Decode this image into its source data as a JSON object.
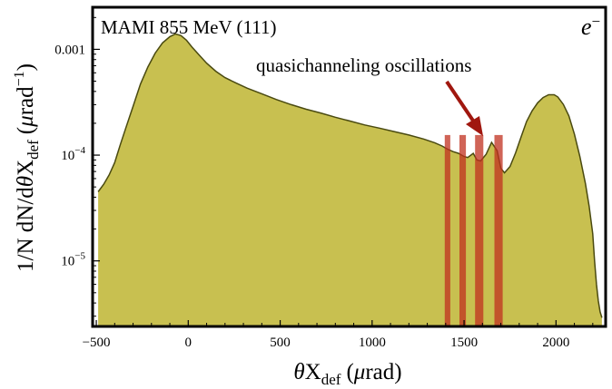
{
  "chart_data": {
    "type": "area",
    "title": "MAMI 855 MeV (111)",
    "corner_label": "e−",
    "xlabel": "θX",
    "xlabel_sub": "def",
    "xlabel_unit": "(μrad)",
    "ylabel": "1/N dN/dθX",
    "ylabel_sub": "def",
    "ylabel_unit": "(μrad⁻¹)",
    "y_scale": "log",
    "xlim": [
      -520,
      2270
    ],
    "ylim": [
      2.4e-06,
      0.0025
    ],
    "x_ticks": [
      -500,
      0,
      500,
      1000,
      1500,
      2000
    ],
    "x_tick_labels": [
      "−500",
      "0",
      "500",
      "1000",
      "1500",
      "2000"
    ],
    "y_ticks": [
      1e-05,
      0.0001,
      0.001
    ],
    "y_tick_labels": [
      {
        "base": "10",
        "exp": "−5"
      },
      {
        "base": "10",
        "exp": "−4"
      },
      {
        "base": "0.001",
        "exp": ""
      }
    ],
    "fill_color": "#c8c050",
    "line_color": "#4a4a10",
    "highlight_color": "#c0301f",
    "annotation": "quasichanneling oscillations",
    "x": [
      -490,
      -460,
      -430,
      -400,
      -370,
      -340,
      -300,
      -260,
      -220,
      -180,
      -140,
      -100,
      -70,
      -40,
      -10,
      20,
      60,
      100,
      150,
      200,
      260,
      320,
      400,
      480,
      560,
      640,
      720,
      800,
      880,
      960,
      1040,
      1120,
      1200,
      1280,
      1340,
      1380,
      1410,
      1440,
      1470,
      1500,
      1520,
      1550,
      1570,
      1590,
      1620,
      1650,
      1680,
      1700,
      1720,
      1750,
      1780,
      1810,
      1840,
      1870,
      1900,
      1930,
      1960,
      1990,
      2010,
      2040,
      2070,
      2100,
      2130,
      2160,
      2180,
      2200,
      2210,
      2220,
      2230,
      2240,
      2250
    ],
    "y": [
      4.5e-05,
      5.3e-05,
      6.5e-05,
      8.5e-05,
      0.000125,
      0.00018,
      0.00029,
      0.00047,
      0.00068,
      0.00092,
      0.00115,
      0.00132,
      0.0014,
      0.00135,
      0.00122,
      0.00105,
      0.00088,
      0.00074,
      0.00062,
      0.00054,
      0.00048,
      0.00043,
      0.00038,
      0.000335,
      0.0003,
      0.000272,
      0.00025,
      0.000228,
      0.00021,
      0.000193,
      0.00018,
      0.000167,
      0.000155,
      0.000142,
      0.000131,
      0.000122,
      0.000114,
      0.000108,
      0.000104,
      9.7e-05,
      9.5e-05,
      0.000104,
      9e-05,
      8.8e-05,
      0.000102,
      0.000132,
      0.00011,
      7.5e-05,
      6.8e-05,
      7.8e-05,
      0.000105,
      0.000148,
      0.000208,
      0.000262,
      0.000312,
      0.00035,
      0.000372,
      0.000372,
      0.000355,
      0.000302,
      0.000235,
      0.000158,
      9.7e-05,
      5.4e-05,
      3.3e-05,
      1.8e-05,
      1e-05,
      6e-06,
      4.2e-06,
      3.3e-06,
      2.9e-06
    ],
    "highlight_bands": [
      {
        "x0": 1395,
        "x1": 1425,
        "y_top": 0.000155
      },
      {
        "x0": 1475,
        "x1": 1510,
        "y_top": 0.000155
      },
      {
        "x0": 1560,
        "x1": 1605,
        "y_top": 0.000155
      },
      {
        "x0": 1665,
        "x1": 1710,
        "y_top": 0.000155
      }
    ]
  }
}
